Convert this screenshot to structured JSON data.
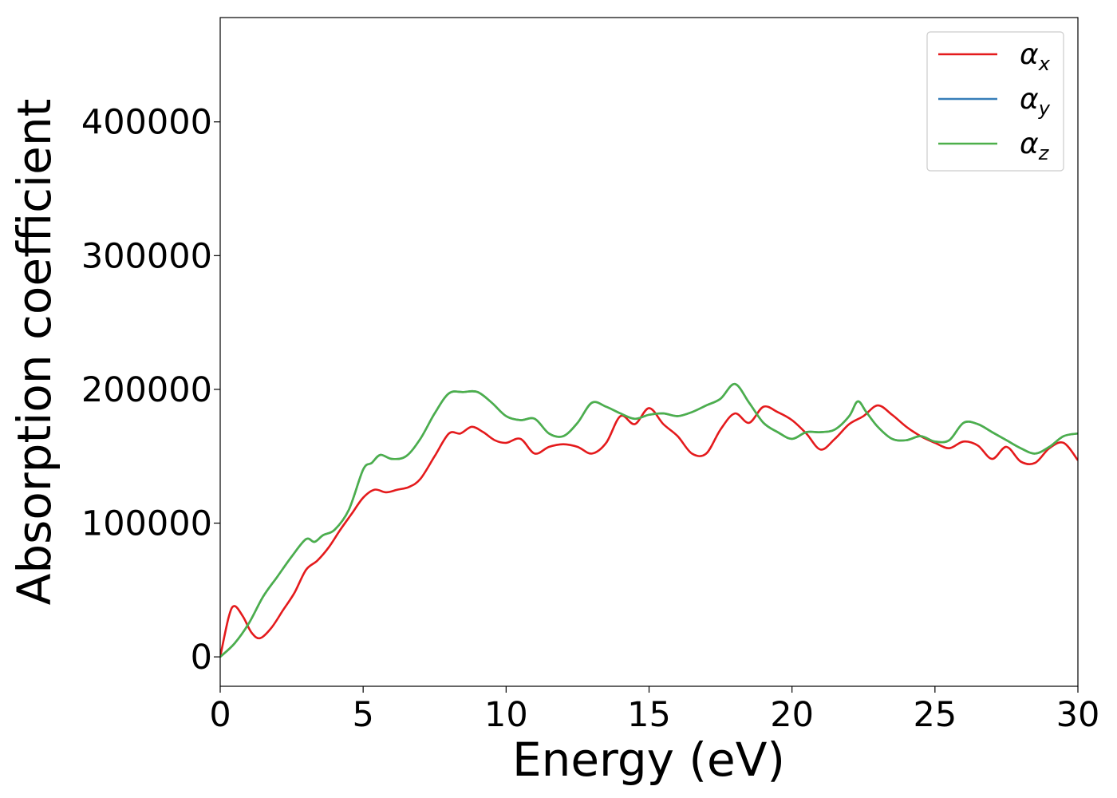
{
  "chart_data": {
    "type": "line",
    "xlabel": "Energy (eV)",
    "ylabel": "Absorption coefficient",
    "xlim": [
      0,
      30
    ],
    "ylim": [
      -22000,
      478000
    ],
    "xticks": [
      0,
      5,
      10,
      15,
      20,
      25,
      30
    ],
    "yticks": [
      0,
      100000,
      200000,
      300000,
      400000
    ],
    "grid": false,
    "legend_position": "top-right",
    "series": [
      {
        "name": "αx",
        "symbol": "α",
        "subscript": "x",
        "color": "#e41a1c",
        "x": [
          0,
          0.3,
          0.5,
          0.8,
          1.1,
          1.4,
          1.8,
          2.2,
          2.6,
          3,
          3.4,
          3.8,
          4.2,
          4.6,
          5,
          5.4,
          5.8,
          6.2,
          6.6,
          7,
          7.5,
          8,
          8.4,
          8.8,
          9.2,
          9.6,
          10,
          10.5,
          11,
          11.5,
          12,
          12.5,
          13,
          13.5,
          14,
          14.5,
          15,
          15.5,
          16,
          16.5,
          17,
          17.5,
          18,
          18.5,
          19,
          19.5,
          20,
          20.5,
          21,
          21.5,
          22,
          22.5,
          23,
          23.5,
          24,
          24.5,
          25,
          25.5,
          26,
          26.5,
          27,
          27.5,
          28,
          28.5,
          29,
          29.5,
          30
        ],
        "values": [
          0,
          30000,
          38000,
          30000,
          18000,
          14000,
          22000,
          35000,
          48000,
          65000,
          72000,
          82000,
          95000,
          107000,
          119000,
          125000,
          123000,
          125000,
          127000,
          133000,
          150000,
          167000,
          167000,
          172000,
          168000,
          162000,
          160000,
          163000,
          152000,
          157000,
          159000,
          157000,
          152000,
          160000,
          180000,
          174000,
          186000,
          174000,
          165000,
          152000,
          152000,
          170000,
          182000,
          175000,
          187000,
          183000,
          177000,
          167000,
          155000,
          163000,
          174000,
          180000,
          188000,
          181000,
          172000,
          165000,
          160000,
          156000,
          161000,
          158000,
          148000,
          157000,
          146000,
          145000,
          156000,
          160000,
          147000
        ]
      },
      {
        "name": "αy",
        "symbol": "α",
        "subscript": "y",
        "color": "#377eb8",
        "x": [
          0,
          0.5,
          1,
          1.5,
          2,
          2.5,
          3,
          3.3,
          3.6,
          4,
          4.5,
          5,
          5.3,
          5.6,
          6,
          6.5,
          7,
          7.5,
          8,
          8.5,
          9,
          9.5,
          10,
          10.5,
          11,
          11.5,
          12,
          12.5,
          13,
          13.5,
          14,
          14.5,
          15,
          15.5,
          16,
          16.5,
          17,
          17.5,
          18,
          18.5,
          19,
          19.5,
          20,
          20.5,
          21,
          21.5,
          22,
          22.3,
          22.6,
          23,
          23.5,
          24,
          24.5,
          25,
          25.5,
          26,
          26.5,
          27,
          27.5,
          28,
          28.5,
          29,
          29.5,
          30
        ],
        "values": [
          0,
          10000,
          25000,
          45000,
          60000,
          75000,
          88000,
          86000,
          91000,
          95000,
          110000,
          140000,
          145000,
          151000,
          148000,
          150000,
          163000,
          182000,
          197000,
          198000,
          198000,
          190000,
          180000,
          177000,
          178000,
          167000,
          165000,
          175000,
          190000,
          187000,
          182000,
          178000,
          181000,
          182000,
          180000,
          183000,
          188000,
          193000,
          204000,
          190000,
          175000,
          168000,
          163000,
          168000,
          168000,
          170000,
          180000,
          191000,
          183000,
          172000,
          163000,
          162000,
          165000,
          161000,
          162000,
          175000,
          174000,
          168000,
          162000,
          156000,
          152000,
          157000,
          165000,
          167000
        ]
      },
      {
        "name": "αz",
        "symbol": "α",
        "subscript": "z",
        "color": "#4daf4a",
        "x": [
          0,
          0.5,
          1,
          1.5,
          2,
          2.5,
          3,
          3.3,
          3.6,
          4,
          4.5,
          5,
          5.3,
          5.6,
          6,
          6.5,
          7,
          7.5,
          8,
          8.5,
          9,
          9.5,
          10,
          10.5,
          11,
          11.5,
          12,
          12.5,
          13,
          13.5,
          14,
          14.5,
          15,
          15.5,
          16,
          16.5,
          17,
          17.5,
          18,
          18.5,
          19,
          19.5,
          20,
          20.5,
          21,
          21.5,
          22,
          22.3,
          22.6,
          23,
          23.5,
          24,
          24.5,
          25,
          25.5,
          26,
          26.5,
          27,
          27.5,
          28,
          28.5,
          29,
          29.5,
          30
        ],
        "values": [
          0,
          10000,
          25000,
          45000,
          60000,
          75000,
          88000,
          86000,
          91000,
          95000,
          110000,
          140000,
          145000,
          151000,
          148000,
          150000,
          163000,
          182000,
          197000,
          198000,
          198000,
          190000,
          180000,
          177000,
          178000,
          167000,
          165000,
          175000,
          190000,
          187000,
          182000,
          178000,
          181000,
          182000,
          180000,
          183000,
          188000,
          193000,
          204000,
          190000,
          175000,
          168000,
          163000,
          168000,
          168000,
          170000,
          180000,
          191000,
          183000,
          172000,
          163000,
          162000,
          165000,
          161000,
          162000,
          175000,
          174000,
          168000,
          162000,
          156000,
          152000,
          157000,
          165000,
          167000
        ]
      }
    ]
  }
}
